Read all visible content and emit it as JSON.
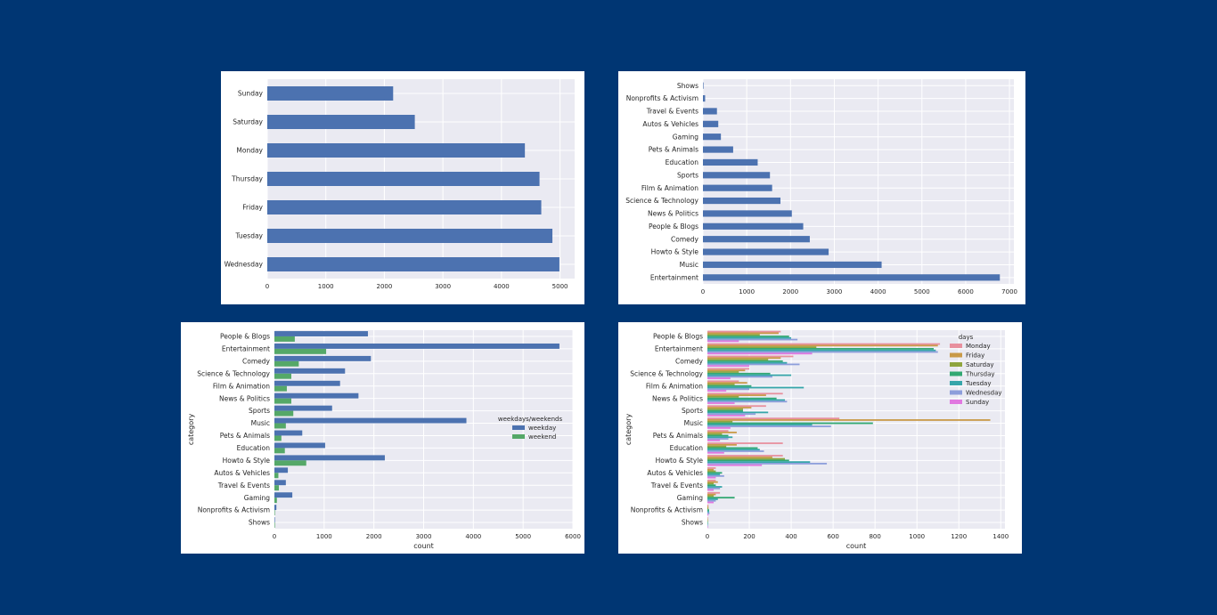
{
  "colors": {
    "background": "#003673",
    "plot_bg": "#EAEAF2",
    "grid": "#FFFFFF",
    "bar": "#4C72B0",
    "weekday": "#4C72B0",
    "weekend": "#55A868"
  },
  "chart_data": [
    {
      "type": "bar",
      "orientation": "horizontal",
      "categories": [
        "Sunday",
        "Saturday",
        "Monday",
        "Thursday",
        "Friday",
        "Tuesday",
        "Wednesday"
      ],
      "values": [
        2150,
        2520,
        4400,
        4650,
        4680,
        4870,
        4990
      ],
      "xticks": [
        "0",
        "1000",
        "2000",
        "3000",
        "4000",
        "5000"
      ],
      "xlim": [
        0,
        5250
      ],
      "grid": true,
      "title": "",
      "xlabel": "",
      "ylabel": ""
    },
    {
      "type": "bar",
      "orientation": "horizontal",
      "categories": [
        "Shows",
        "Nonprofits & Activism",
        "Travel & Events",
        "Autos & Vehicles",
        "Gaming",
        "Pets & Animals",
        "Education",
        "Sports",
        "Film & Animation",
        "Science & Technology",
        "News & Politics",
        "People & Blogs",
        "Comedy",
        "Howto & Style",
        "Music",
        "Entertainment"
      ],
      "values": [
        10,
        50,
        320,
        350,
        410,
        690,
        1250,
        1530,
        1580,
        1770,
        2030,
        2290,
        2440,
        2870,
        4080,
        6780
      ],
      "xticks": [
        "0",
        "1000",
        "2000",
        "3000",
        "4000",
        "5000",
        "6000",
        "7000"
      ],
      "xlim": [
        0,
        7100
      ],
      "grid": true,
      "title": "",
      "xlabel": "",
      "ylabel": ""
    },
    {
      "type": "bar",
      "orientation": "horizontal",
      "categories": [
        "People & Blogs",
        "Entertainment",
        "Comedy",
        "Science & Technology",
        "Film & Animation",
        "News & Politics",
        "Sports",
        "Music",
        "Pets & Animals",
        "Education",
        "Howto & Style",
        "Autos & Vehicles",
        "Travel & Events",
        "Gaming",
        "Nonprofits & Activism",
        "Shows"
      ],
      "series": [
        {
          "name": "weekday",
          "values": [
            1880,
            5730,
            1940,
            1420,
            1320,
            1690,
            1160,
            3860,
            560,
            1020,
            2220,
            270,
            230,
            360,
            40,
            8
          ]
        },
        {
          "name": "weekend",
          "values": [
            410,
            1040,
            490,
            340,
            250,
            340,
            380,
            230,
            140,
            210,
            640,
            80,
            90,
            50,
            10,
            2
          ]
        }
      ],
      "xticks": [
        "0",
        "1000",
        "2000",
        "3000",
        "4000",
        "5000",
        "6000"
      ],
      "xlim": [
        0,
        6000
      ],
      "xlabel": "count",
      "ylabel": "category",
      "legend_title": "weekdays/weekends",
      "legend_placement": "center-right",
      "grid": true,
      "title": ""
    },
    {
      "type": "bar",
      "orientation": "horizontal",
      "categories": [
        "People & Blogs",
        "Entertainment",
        "Comedy",
        "Science & Technology",
        "Film & Animation",
        "News & Politics",
        "Sports",
        "Music",
        "Pets & Animals",
        "Education",
        "Howto & Style",
        "Autos & Vehicles",
        "Travel & Events",
        "Gaming",
        "Nonprofits & Activism",
        "Shows"
      ],
      "series": [
        {
          "name": "Monday",
          "color": "#E8909E",
          "values": [
            350,
            1110,
            410,
            200,
            150,
            360,
            280,
            630,
            100,
            360,
            360,
            40,
            40,
            60,
            5,
            2
          ]
        },
        {
          "name": "Friday",
          "color": "#C99A48",
          "values": [
            340,
            1100,
            350,
            180,
            190,
            280,
            210,
            1350,
            140,
            140,
            310,
            30,
            50,
            40,
            5,
            1
          ]
        },
        {
          "name": "Saturday",
          "color": "#8FA53E",
          "values": [
            250,
            520,
            290,
            150,
            130,
            150,
            170,
            120,
            70,
            90,
            370,
            40,
            30,
            30,
            5,
            1
          ]
        },
        {
          "name": "Thursday",
          "color": "#32A872",
          "values": [
            390,
            1080,
            360,
            300,
            210,
            330,
            170,
            790,
            100,
            240,
            390,
            70,
            40,
            130,
            8,
            1
          ]
        },
        {
          "name": "Tuesday",
          "color": "#36A6AA",
          "values": [
            400,
            1090,
            380,
            400,
            460,
            370,
            290,
            500,
            120,
            250,
            490,
            60,
            70,
            50,
            8,
            1
          ]
        },
        {
          "name": "Wednesday",
          "color": "#8D9EDB",
          "values": [
            430,
            1100,
            440,
            310,
            200,
            380,
            230,
            590,
            100,
            270,
            570,
            80,
            60,
            40,
            10,
            2
          ]
        },
        {
          "name": "Sunday",
          "color": "#E178E0",
          "values": [
            150,
            500,
            200,
            110,
            90,
            130,
            180,
            110,
            60,
            80,
            260,
            40,
            30,
            30,
            5,
            1
          ]
        }
      ],
      "xticks": [
        "0",
        "200",
        "400",
        "600",
        "800",
        "1000",
        "1200",
        "1400"
      ],
      "xlim": [
        0,
        1420
      ],
      "xlabel": "count",
      "ylabel": "category",
      "legend_title": "days",
      "legend_placement": "top-right",
      "grid": true,
      "title": ""
    }
  ]
}
